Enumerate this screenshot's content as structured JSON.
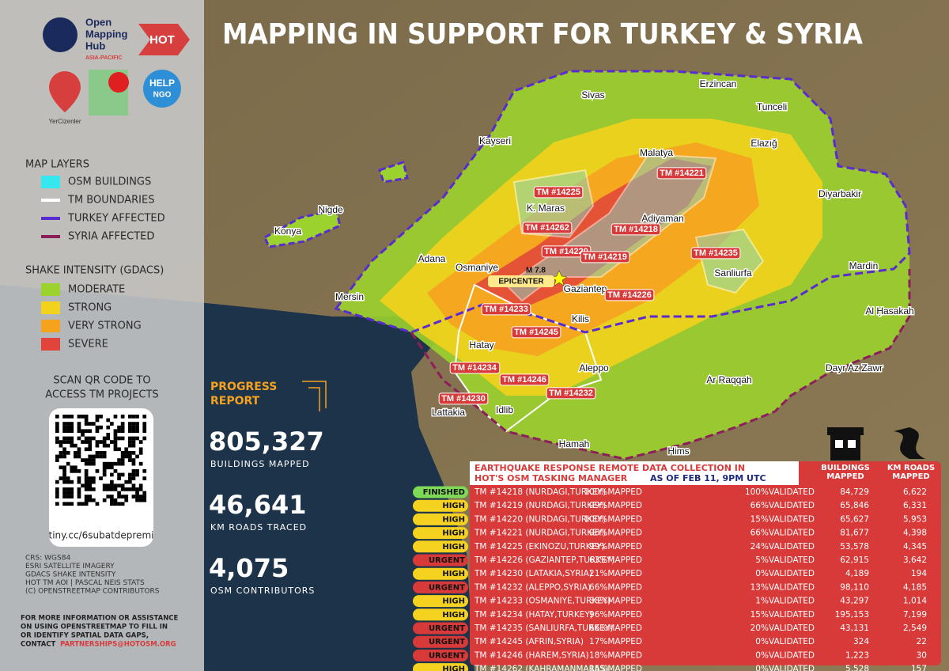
{
  "header": {
    "title": "MAPPING IN SUPPORT FOR TURKEY & SYRIA"
  },
  "logos": {
    "omh_name": [
      "Open",
      "Mapping",
      "Hub"
    ],
    "omh_region": "ASIA-PACIFIC",
    "hot": "HOT",
    "yer": "YerCizenler",
    "help": "HELP",
    "ngo": "NGO"
  },
  "map_layers": {
    "title": "MAP LAYERS",
    "items": [
      {
        "label": "OSM BUILDINGS",
        "color": "#35e8f0"
      },
      {
        "label": "TM BOUNDARIES",
        "color": "#ffffff"
      },
      {
        "label": "TURKEY AFFECTED",
        "color": "#5a2bd1"
      },
      {
        "label": "SYRIA AFFECTED",
        "color": "#8c1e5a"
      }
    ]
  },
  "shake_intensity": {
    "title": "SHAKE INTENSITY (GDACS)",
    "items": [
      {
        "label": "MODERATE",
        "color": "#9bd22e"
      },
      {
        "label": "STRONG",
        "color": "#f2d21d"
      },
      {
        "label": "VERY STRONG",
        "color": "#f5a21f"
      },
      {
        "label": "SEVERE",
        "color": "#e0443a"
      }
    ]
  },
  "qr": {
    "caption": [
      "SCAN QR CODE TO",
      "ACCESS TM PROJECTS"
    ],
    "url": "tiny.cc/6subatdepremi"
  },
  "credits": [
    "CRS: WGS84",
    "ESRI SATELLITE IMAGERY",
    "GDACS SHAKE INTENSITY",
    "HOT TM AOI | PASCAL NEIS STATS",
    "(C) OPENSTREETMAP CONTRIBUTORS"
  ],
  "contact": {
    "lines": [
      "FOR MORE INFORMATION OR ASSISTANCE",
      "ON USING OPENSTREETMAP TO FILL IN",
      "OR IDENTIFY SPATIAL DATA GAPS,",
      "CONTACT"
    ],
    "email": "PARTNERSHIPS@HOTOSM.ORG"
  },
  "progress": {
    "title": [
      "PROGRESS",
      "REPORT"
    ],
    "stats": [
      {
        "value": "805,327",
        "label": "BUILDINGS MAPPED"
      },
      {
        "value": "46,641",
        "label": "KM ROADS TRACED"
      },
      {
        "value": "4,075",
        "label": "OSM CONTRIBUTORS"
      }
    ]
  },
  "map": {
    "places": [
      "Sivas",
      "Erzincan",
      "Tunceli",
      "Kayseri",
      "Malatya",
      "Elazığ",
      "Diyarbakir",
      "Nigde",
      "Konya",
      "K. Maras",
      "Adiyaman",
      "Adana",
      "Osmaniye",
      "Sanliurfa",
      "Mardin",
      "Gaziantep",
      "Mersin",
      "Al Ḥasakah",
      "Kilis",
      "Hatay",
      "Aleppo",
      "Dayr Az Zawr",
      "Ar Raqqah",
      "Idlib",
      "Lattakia",
      "Hamah",
      "Hims"
    ],
    "tm_labels": [
      "TM #14225",
      "TM #14221",
      "TM #14262",
      "TM #14218",
      "TM #14220",
      "TM #14219",
      "TM #14235",
      "TM #14226",
      "TM #14233",
      "TM #14245",
      "TM #14234",
      "TM #14246",
      "TM #14232",
      "TM #14230"
    ],
    "epicenter": [
      "M 7.8",
      "EPICENTER"
    ]
  },
  "table": {
    "title": [
      "EARTHQUAKE RESPONSE REMOTE DATA COLLECTION IN",
      "HOT'S OSM TASKING MANAGER"
    ],
    "as_of": "AS OF FEB 11, 9PM UTC",
    "columns": [
      [
        "BUILDINGS",
        "MAPPED"
      ],
      [
        "KM ROADS",
        "MAPPED"
      ]
    ],
    "rows": [
      {
        "status": "FINISHED",
        "status_color": "#7ed957",
        "project": "TM #14218 (NURDAGI,TURKEY)",
        "mapped": "100%MAPPED",
        "validated": "100%VALIDATED",
        "buildings": "84,729",
        "roads": "6,622"
      },
      {
        "status": "HIGH",
        "status_color": "#f5d21f",
        "project": "TM #14219 (NURDAGI,TURKEY)",
        "mapped": "99%MAPPED",
        "validated": "66%VALIDATED",
        "buildings": "65,846",
        "roads": "6,331"
      },
      {
        "status": "HIGH",
        "status_color": "#f5d21f",
        "project": "TM #14220 (NURDAGI,TURKEY)",
        "mapped": "100%MAPPED",
        "validated": "15%VALIDATED",
        "buildings": "65,627",
        "roads": "5,953"
      },
      {
        "status": "HIGH",
        "status_color": "#f5d21f",
        "project": "TM #14221 (NURDAGI,TURKEY)",
        "mapped": "96%MAPPED",
        "validated": "66%VALIDATED",
        "buildings": "81,677",
        "roads": "4,398"
      },
      {
        "status": "HIGH",
        "status_color": "#f5d21f",
        "project": "TM #14225 (EKINOZU,TURKEY)",
        "mapped": "99%MAPPED",
        "validated": "24%VALIDATED",
        "buildings": "53,578",
        "roads": "4,345"
      },
      {
        "status": "URGENT",
        "status_color": "#d83a3a",
        "project": "TM #14226 (GAZIANTEP,TURKEY)",
        "mapped": "63%MAPPED",
        "validated": "5%VALIDATED",
        "buildings": "62,915",
        "roads": "3,642"
      },
      {
        "status": "HIGH",
        "status_color": "#f5d21f",
        "project": "TM #14230 (LATAKIA,SYRIA)",
        "mapped": "21%MAPPED",
        "validated": "0%VALIDATED",
        "buildings": "4,189",
        "roads": "194"
      },
      {
        "status": "URGENT",
        "status_color": "#d83a3a",
        "project": "TM #14232 (ALEPPO,SYRIA)",
        "mapped": "66%MAPPED",
        "validated": "13%VALIDATED",
        "buildings": "98,110",
        "roads": "4,185"
      },
      {
        "status": "HIGH",
        "status_color": "#f5d21f",
        "project": "TM #14233 (OSMANIYE,TURKEY)",
        "mapped": "38%MAPPED",
        "validated": "1%VALIDATED",
        "buildings": "43,297",
        "roads": "1,014"
      },
      {
        "status": "HIGH",
        "status_color": "#f5d21f",
        "project": "TM #14234 (HATAY,TURKEY)",
        "mapped": "96%MAPPED",
        "validated": "15%VALIDATED",
        "buildings": "195,153",
        "roads": "7,199"
      },
      {
        "status": "URGENT",
        "status_color": "#d83a3a",
        "project": "TM #14235 (SANLIURFA,TURKEY)",
        "mapped": "66%MAPPED",
        "validated": "20%VALIDATED",
        "buildings": "43,131",
        "roads": "2,549"
      },
      {
        "status": "URGENT",
        "status_color": "#d83a3a",
        "project": "TM #14245 (AFRIN,SYRIA)",
        "mapped": "17%MAPPED",
        "validated": "0%VALIDATED",
        "buildings": "324",
        "roads": "22"
      },
      {
        "status": "URGENT",
        "status_color": "#d83a3a",
        "project": "TM #14246 (HAREM,SYRIA)",
        "mapped": "18%MAPPED",
        "validated": "0%VALIDATED",
        "buildings": "1,223",
        "roads": "30"
      },
      {
        "status": "HIGH",
        "status_color": "#f5d21f",
        "project": "TM #14262 (KAHRAMANMARAS)",
        "mapped": "15%MAPPED",
        "validated": "0%VALIDATED",
        "buildings": "5,528",
        "roads": "157"
      }
    ]
  }
}
